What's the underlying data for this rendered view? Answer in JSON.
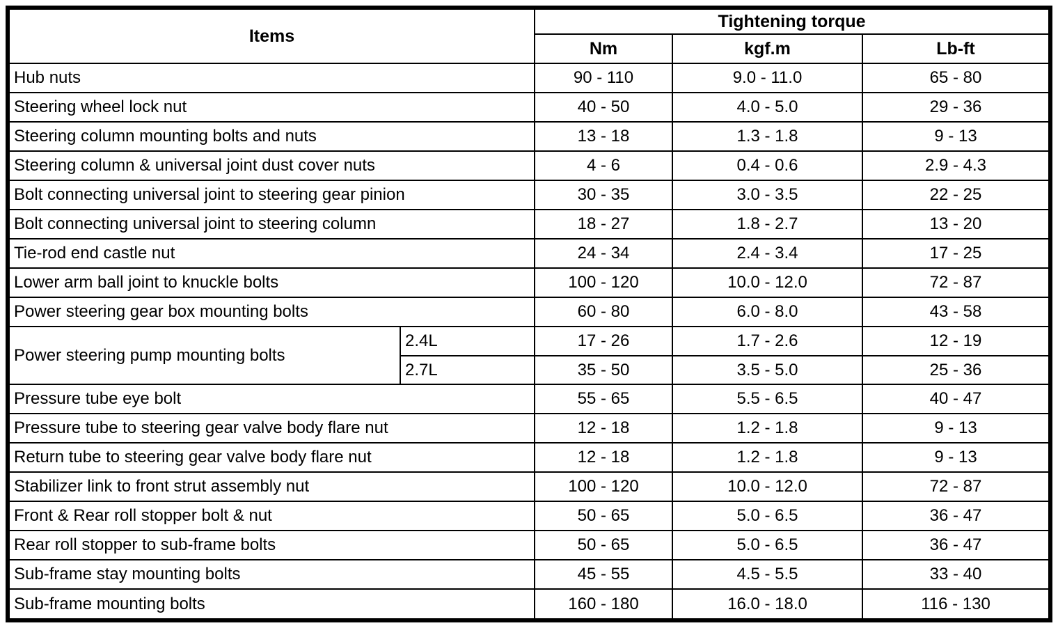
{
  "colors": {
    "background": "#ffffff",
    "border": "#000000",
    "text": "#000000"
  },
  "table": {
    "items_header": "Items",
    "torque_header": "Tightening torque",
    "unit_headers": [
      "Nm",
      "kgf.m",
      "Lb-ft"
    ],
    "rows": [
      {
        "item": "Hub nuts",
        "nm": "90 - 110",
        "kgfm": "9.0 - 11.0",
        "lbft": "65 - 80"
      },
      {
        "item": "Steering wheel lock nut",
        "nm": "40 - 50",
        "kgfm": "4.0 - 5.0",
        "lbft": "29 - 36"
      },
      {
        "item": "Steering column mounting bolts and nuts",
        "nm": "13 - 18",
        "kgfm": "1.3 - 1.8",
        "lbft": "9 - 13"
      },
      {
        "item": "Steering column & universal joint dust cover nuts",
        "nm": "4 - 6",
        "kgfm": "0.4 - 0.6",
        "lbft": "2.9 - 4.3"
      },
      {
        "item": "Bolt connecting universal joint to steering gear pinion",
        "nm": "30 - 35",
        "kgfm": "3.0 - 3.5",
        "lbft": "22 - 25"
      },
      {
        "item": "Bolt connecting universal joint to steering column",
        "nm": "18 - 27",
        "kgfm": "1.8 - 2.7",
        "lbft": "13 - 20"
      },
      {
        "item": "Tie-rod end castle nut",
        "nm": "24 - 34",
        "kgfm": "2.4 - 3.4",
        "lbft": "17 - 25"
      },
      {
        "item": "Lower arm ball joint to knuckle bolts",
        "nm": "100 - 120",
        "kgfm": "10.0 - 12.0",
        "lbft": "72 - 87"
      },
      {
        "item": "Power steering gear box mounting bolts",
        "nm": "60 - 80",
        "kgfm": "6.0 - 8.0",
        "lbft": "43 - 58"
      },
      {
        "item": "Power steering pump mounting bolts",
        "item_rowspan": 2,
        "variant": "2.4L",
        "nm": "17 - 26",
        "kgfm": "1.7 - 2.6",
        "lbft": "12 - 19"
      },
      {
        "variant": "2.7L",
        "nm": "35 - 50",
        "kgfm": "3.5 - 5.0",
        "lbft": "25 - 36"
      },
      {
        "item": "Pressure tube eye bolt",
        "nm": "55 - 65",
        "kgfm": "5.5 - 6.5",
        "lbft": "40 - 47"
      },
      {
        "item": "Pressure tube to steering gear valve body flare nut",
        "nm": "12 - 18",
        "kgfm": "1.2 - 1.8",
        "lbft": "9 - 13"
      },
      {
        "item": "Return tube to steering gear valve body flare nut",
        "nm": "12 - 18",
        "kgfm": "1.2 - 1.8",
        "lbft": "9 - 13"
      },
      {
        "item": "Stabilizer link to front strut assembly nut",
        "nm": "100 - 120",
        "kgfm": "10.0 - 12.0",
        "lbft": "72 - 87"
      },
      {
        "item": "Front & Rear roll stopper bolt & nut",
        "nm": "50 - 65",
        "kgfm": "5.0 - 6.5",
        "lbft": "36 - 47"
      },
      {
        "item": "Rear roll stopper to sub-frame bolts",
        "nm": "50 - 65",
        "kgfm": "5.0 - 6.5",
        "lbft": "36 - 47"
      },
      {
        "item": "Sub-frame stay mounting bolts",
        "nm": "45 - 55",
        "kgfm": "4.5 - 5.5",
        "lbft": "33 - 40"
      },
      {
        "item": "Sub-frame mounting bolts",
        "nm": "160 - 180",
        "kgfm": "16.0 - 18.0",
        "lbft": "116 - 130"
      }
    ]
  }
}
